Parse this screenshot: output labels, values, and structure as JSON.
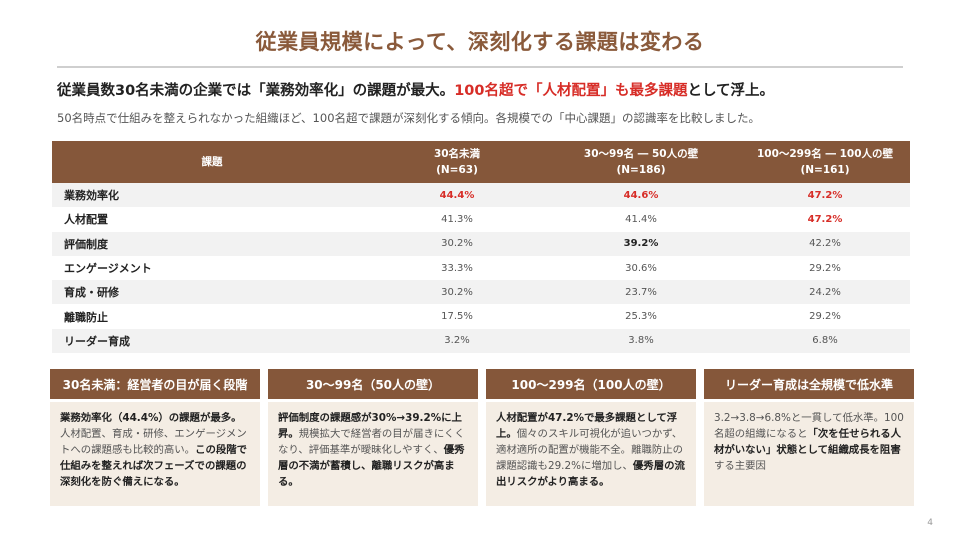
{
  "title": "従業員規模によって、深刻化する課題は変わる",
  "headline": {
    "part1": "従業員数30名未満の企業では「業務効率化」の課題が最大。",
    "part2": "100名超で「人材配置」も最多課題",
    "part3": "として浮上。"
  },
  "subline": "50名時点で仕組みを整えられなかった組織ほど、100名超で課題が深刻化する傾向。各規模での「中心課題」の認識率を比較しました。",
  "table": {
    "headers": {
      "issue": "課題",
      "col1_line1": "30名未満",
      "col1_line2": "(N=63)",
      "col2_line1": "30〜99名 ― 50人の壁",
      "col2_line2": "(N=186)",
      "col3_line1": "100〜299名 ― 100人の壁",
      "col3_line2": "(N=161)"
    },
    "rows": [
      {
        "label": "業務効率化",
        "v1": "44.4%",
        "v2": "44.6%",
        "v3": "47.2%"
      },
      {
        "label": "人材配置",
        "v1": "41.3%",
        "v2": "41.4%",
        "v3": "47.2%"
      },
      {
        "label": "評価制度",
        "v1": "30.2%",
        "v2": "39.2%",
        "v3": "42.2%"
      },
      {
        "label": "エンゲージメント",
        "v1": "33.3%",
        "v2": "30.6%",
        "v3": "29.2%"
      },
      {
        "label": "育成・研修",
        "v1": "30.2%",
        "v2": "23.7%",
        "v3": "24.2%"
      },
      {
        "label": "離職防止",
        "v1": "17.5%",
        "v2": "25.3%",
        "v3": "29.2%"
      },
      {
        "label": "リーダー育成",
        "v1": "3.2%",
        "v2": "3.8%",
        "v3": "6.8%"
      }
    ]
  },
  "cards": [
    {
      "header": "30名未満：経営者の目が届く段階",
      "t1": "業務効率化（44.4%）の課題が最多。",
      "t2": "人材配置、育成・研修、エンゲージメントへの課題感も比較的高い。",
      "t3": "この段階で仕組みを整えれば次フェーズでの課題の深刻化を防ぐ備えになる。"
    },
    {
      "header": "30〜99名（50人の壁）",
      "t1": "評価制度の課題感が30%→39.2%に上昇。",
      "t2": "規模拡大で経営者の目が届きにくくなり、評価基準が曖昧化しやすく、",
      "t3": "優秀層の不満が蓄積し、離職リスクが高まる。"
    },
    {
      "header": "100〜299名（100人の壁）",
      "t1": "人材配置が47.2%で最多課題として浮上。",
      "t2": "個々のスキル可視化が追いつかず、適材適所の配置が機能不全。離職防止の課題認識も29.2%に増加し、",
      "t3": "優秀層の流出リスクがより高まる。"
    },
    {
      "header": "リーダー育成は全規模で低水準",
      "t1": "3.2→3.8→6.8%と一貫して低水準。100名超の組織になると",
      "t2": "「次を任せられる人材がいない」状態として組織成長を阻害",
      "t3": "する主要因"
    }
  ],
  "page_number": "4",
  "colors": {
    "accent_brown": "#85573a",
    "title_brown": "#8a5a3b",
    "highlight_red": "#d72d27",
    "card_bg": "#f4ede4"
  }
}
